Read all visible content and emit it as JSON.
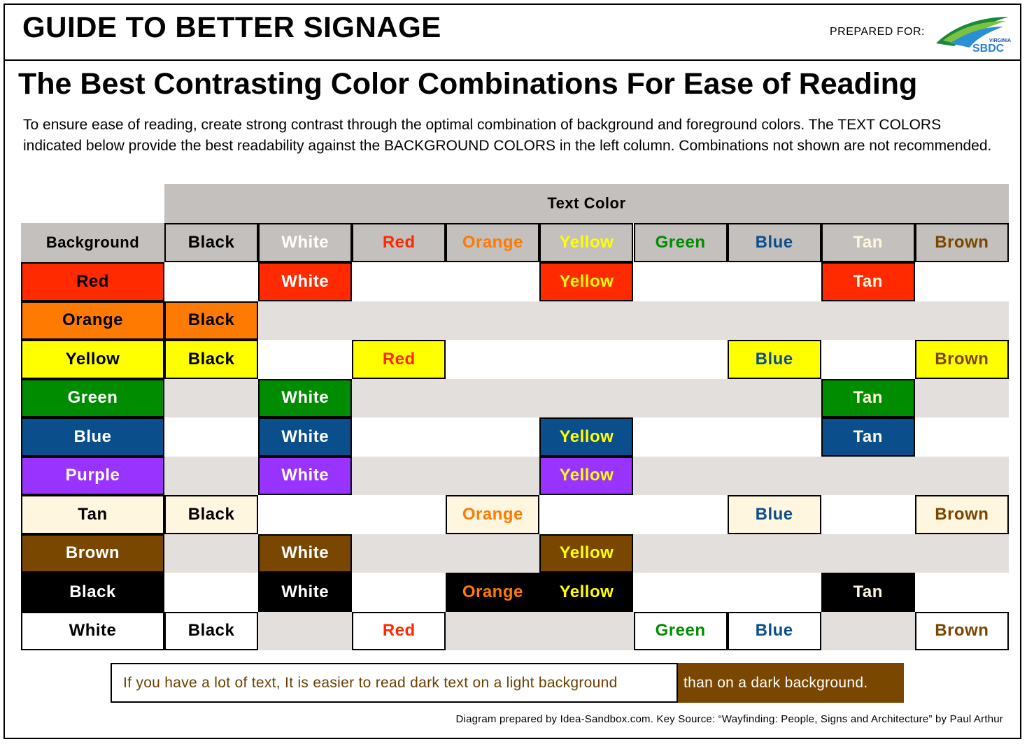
{
  "header": {
    "title": "GUIDE TO BETTER SIGNAGE",
    "prepared_for": "PREPARED FOR:",
    "logo": {
      "name": "virginia-sbdc-logo",
      "line1": "VIRGINIA",
      "line2": "SBDC"
    }
  },
  "heading": "The Best Contrasting Color Combinations For Ease of Reading",
  "intro": "To ensure ease of reading, create strong contrast through the optimal combination of background and foreground colors. The TEXT COLORS indicated below provide the best readability against the BACKGROUND COLORS in the left column. Combinations not shown are not recommended.",
  "table": {
    "text_color_header": "Text Color",
    "background_header": "Background",
    "text_colors": [
      {
        "label": "Black",
        "color": "#000000"
      },
      {
        "label": "White",
        "color": "#ffffff"
      },
      {
        "label": "Red",
        "color": "#ff2a00"
      },
      {
        "label": "Orange",
        "color": "#ff7a00"
      },
      {
        "label": "Yellow",
        "color": "#ffff00"
      },
      {
        "label": "Green",
        "color": "#008c00"
      },
      {
        "label": "Blue",
        "color": "#0a4f8c"
      },
      {
        "label": "Tan",
        "color": "#fff6e0"
      },
      {
        "label": "Brown",
        "color": "#7a4700"
      }
    ],
    "rows": [
      {
        "label": "Red",
        "bg": "#ff2a00",
        "fg": "#000000",
        "combos": [
          1,
          4,
          7
        ]
      },
      {
        "label": "Orange",
        "bg": "#ff7a00",
        "fg": "#000000",
        "combos": [
          0
        ]
      },
      {
        "label": "Yellow",
        "bg": "#ffff00",
        "fg": "#000000",
        "combos": [
          0,
          2,
          6,
          8
        ]
      },
      {
        "label": "Green",
        "bg": "#008c00",
        "fg": "#ffffff",
        "combos": [
          1,
          7
        ]
      },
      {
        "label": "Blue",
        "bg": "#0a4f8c",
        "fg": "#ffffff",
        "combos": [
          1,
          4,
          7
        ]
      },
      {
        "label": "Purple",
        "bg": "#9933ff",
        "fg": "#ffffff",
        "combos": [
          1,
          4
        ]
      },
      {
        "label": "Tan",
        "bg": "#fff6e0",
        "fg": "#000000",
        "combos": [
          0,
          3,
          6,
          8
        ]
      },
      {
        "label": "Brown",
        "bg": "#7a4700",
        "fg": "#ffffff",
        "combos": [
          1,
          4
        ]
      },
      {
        "label": "Black",
        "bg": "#000000",
        "fg": "#ffffff",
        "combos": [
          1,
          3,
          4,
          7
        ]
      },
      {
        "label": "White",
        "bg": "#ffffff",
        "fg": "#000000",
        "combos": [
          0,
          2,
          5,
          6,
          8
        ]
      }
    ],
    "colors": {
      "header_gray": "#c4c0bd",
      "stripe_gray": "#e3dfdc"
    }
  },
  "callout": {
    "light_text": "If you have a lot of text, It is easier to read dark text on a light background",
    "dark_text": "than on a dark background."
  },
  "credit": "Diagram prepared by Idea-Sandbox.com. Key Source: “Wayfinding: People, Signs and Architecture” by Paul Arthur"
}
